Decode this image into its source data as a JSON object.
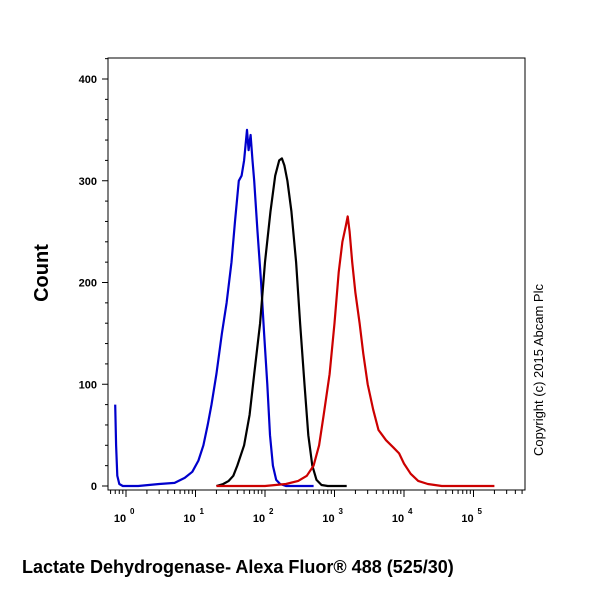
{
  "chart_data": {
    "type": "line",
    "xlabel": "Lactate Dehydrogenase- Alexa Fluor® 488 (525/30)",
    "ylabel": "Count",
    "xscale": "log",
    "xlim": [
      0.7,
      200000
    ],
    "ylim": [
      0,
      420
    ],
    "yticks": [
      0,
      100,
      200,
      300,
      400
    ],
    "xticks": [
      {
        "base": "10",
        "exp": "0",
        "value": 1
      },
      {
        "base": "10",
        "exp": "1",
        "value": 10
      },
      {
        "base": "10",
        "exp": "2",
        "value": 100
      },
      {
        "base": "10",
        "exp": "3",
        "value": 1000
      },
      {
        "base": "10",
        "exp": "4",
        "value": 10000
      },
      {
        "base": "10",
        "exp": "5",
        "value": 100000
      }
    ],
    "grid": false,
    "annotation": "Copyright (c) 2015 Abcam Plc",
    "series": [
      {
        "color": "#0000cc",
        "points": [
          [
            0.7,
            80
          ],
          [
            0.72,
            40
          ],
          [
            0.75,
            10
          ],
          [
            0.8,
            2
          ],
          [
            0.9,
            0
          ],
          [
            1.5,
            0
          ],
          [
            3,
            2
          ],
          [
            5,
            3
          ],
          [
            7,
            8
          ],
          [
            9,
            14
          ],
          [
            11,
            25
          ],
          [
            13,
            40
          ],
          [
            15,
            60
          ],
          [
            17,
            80
          ],
          [
            20,
            110
          ],
          [
            24,
            150
          ],
          [
            28,
            180
          ],
          [
            33,
            220
          ],
          [
            37,
            260
          ],
          [
            42,
            300
          ],
          [
            46,
            305
          ],
          [
            50,
            320
          ],
          [
            55,
            350
          ],
          [
            58,
            330
          ],
          [
            62,
            345
          ],
          [
            66,
            320
          ],
          [
            70,
            300
          ],
          [
            78,
            250
          ],
          [
            88,
            200
          ],
          [
            97,
            150
          ],
          [
            108,
            100
          ],
          [
            118,
            50
          ],
          [
            130,
            20
          ],
          [
            145,
            6
          ],
          [
            165,
            2
          ],
          [
            200,
            0
          ],
          [
            300,
            0
          ],
          [
            500,
            0
          ]
        ]
      },
      {
        "color": "#000000",
        "points": [
          [
            20,
            0
          ],
          [
            25,
            2
          ],
          [
            30,
            5
          ],
          [
            35,
            10
          ],
          [
            40,
            20
          ],
          [
            50,
            40
          ],
          [
            60,
            70
          ],
          [
            70,
            110
          ],
          [
            85,
            160
          ],
          [
            100,
            220
          ],
          [
            120,
            270
          ],
          [
            140,
            305
          ],
          [
            160,
            320
          ],
          [
            175,
            322
          ],
          [
            190,
            315
          ],
          [
            210,
            300
          ],
          [
            240,
            270
          ],
          [
            280,
            220
          ],
          [
            320,
            160
          ],
          [
            370,
            100
          ],
          [
            420,
            50
          ],
          [
            480,
            20
          ],
          [
            550,
            6
          ],
          [
            650,
            1
          ],
          [
            800,
            0
          ],
          [
            1500,
            0
          ]
        ]
      },
      {
        "color": "#cc0000",
        "points": [
          [
            20,
            0
          ],
          [
            100,
            0
          ],
          [
            200,
            2
          ],
          [
            300,
            5
          ],
          [
            400,
            10
          ],
          [
            500,
            20
          ],
          [
            600,
            40
          ],
          [
            700,
            70
          ],
          [
            850,
            110
          ],
          [
            1000,
            160
          ],
          [
            1150,
            210
          ],
          [
            1300,
            240
          ],
          [
            1450,
            255
          ],
          [
            1550,
            265
          ],
          [
            1650,
            250
          ],
          [
            1800,
            220
          ],
          [
            2000,
            190
          ],
          [
            2300,
            160
          ],
          [
            2600,
            130
          ],
          [
            3000,
            100
          ],
          [
            3600,
            75
          ],
          [
            4300,
            55
          ],
          [
            5500,
            45
          ],
          [
            7000,
            38
          ],
          [
            8500,
            32
          ],
          [
            10000,
            22
          ],
          [
            12500,
            12
          ],
          [
            16000,
            5
          ],
          [
            22000,
            2
          ],
          [
            35000,
            0
          ],
          [
            200000,
            0
          ]
        ]
      }
    ]
  }
}
